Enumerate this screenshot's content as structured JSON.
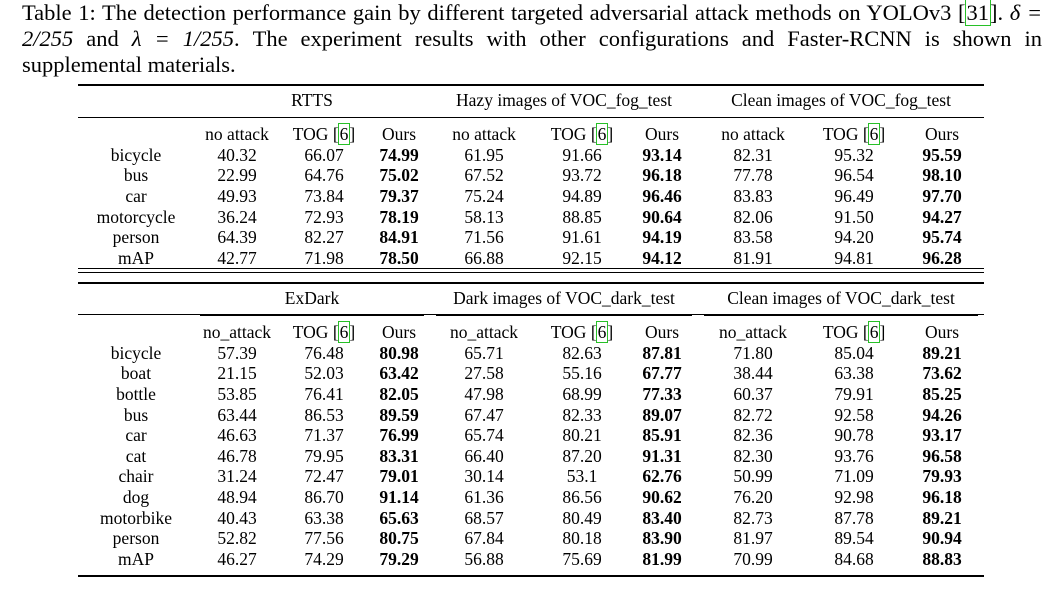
{
  "caption": {
    "prefix": "Table 1:  The detection performance gain by different targeted adversarial attack methods on YOLOv3 ",
    "cite": "31",
    "middle": ".  ",
    "delta": "δ = 2/255",
    "and": " and ",
    "lambda": "λ = 1/255",
    "suffix": ".  The experiment results with other configurations and Faster-RCNN is shown in supplemental materials."
  },
  "table1": {
    "groups": [
      "RTTS",
      "Hazy images of VOC_fog_test",
      "Clean images of VOC_fog_test"
    ],
    "columns": [
      "no attack",
      "TOG",
      "Ours",
      "no attack",
      "TOG",
      "Ours",
      "no attack",
      "TOG",
      "Ours"
    ],
    "tog_cite": "6",
    "rows": [
      {
        "label": "bicycle",
        "values": [
          "40.32",
          "66.07",
          "74.99",
          "61.95",
          "91.66",
          "93.14",
          "82.31",
          "95.32",
          "95.59"
        ]
      },
      {
        "label": "bus",
        "values": [
          "22.99",
          "64.76",
          "75.02",
          "67.52",
          "93.72",
          "96.18",
          "77.78",
          "96.54",
          "98.10"
        ]
      },
      {
        "label": "car",
        "values": [
          "49.93",
          "73.84",
          "79.37",
          "75.24",
          "94.89",
          "96.46",
          "83.83",
          "96.49",
          "97.70"
        ]
      },
      {
        "label": "motorcycle",
        "values": [
          "36.24",
          "72.93",
          "78.19",
          "58.13",
          "88.85",
          "90.64",
          "82.06",
          "91.50",
          "94.27"
        ]
      },
      {
        "label": "person",
        "values": [
          "64.39",
          "82.27",
          "84.91",
          "71.56",
          "91.61",
          "94.19",
          "83.58",
          "94.20",
          "95.74"
        ]
      },
      {
        "label": "mAP",
        "values": [
          "42.77",
          "71.98",
          "78.50",
          "66.88",
          "92.15",
          "94.12",
          "81.91",
          "94.81",
          "96.28"
        ]
      }
    ]
  },
  "table2": {
    "groups": [
      "ExDark",
      "Dark images of VOC_dark_test",
      "Clean images of VOC_dark_test"
    ],
    "columns": [
      "no_attack",
      "TOG",
      "Ours",
      "no_attack",
      "TOG",
      "Ours",
      "no_attack",
      "TOG",
      "Ours"
    ],
    "tog_cite": "6",
    "rows": [
      {
        "label": "bicycle",
        "values": [
          "57.39",
          "76.48",
          "80.98",
          "65.71",
          "82.63",
          "87.81",
          "71.80",
          "85.04",
          "89.21"
        ]
      },
      {
        "label": "boat",
        "values": [
          "21.15",
          "52.03",
          "63.42",
          "27.58",
          "55.16",
          "67.77",
          "38.44",
          "63.38",
          "73.62"
        ]
      },
      {
        "label": "bottle",
        "values": [
          "53.85",
          "76.41",
          "82.05",
          "47.98",
          "68.99",
          "77.33",
          "60.37",
          "79.91",
          "85.25"
        ]
      },
      {
        "label": "bus",
        "values": [
          "63.44",
          "86.53",
          "89.59",
          "67.47",
          "82.33",
          "89.07",
          "82.72",
          "92.58",
          "94.26"
        ]
      },
      {
        "label": "car",
        "values": [
          "46.63",
          "71.37",
          "76.99",
          "65.74",
          "80.21",
          "85.91",
          "82.36",
          "90.78",
          "93.17"
        ]
      },
      {
        "label": "cat",
        "values": [
          "46.78",
          "79.95",
          "83.31",
          "66.40",
          "87.20",
          "91.31",
          "82.30",
          "93.76",
          "96.58"
        ]
      },
      {
        "label": "chair",
        "values": [
          "31.24",
          "72.47",
          "79.01",
          "30.14",
          "53.1",
          "62.76",
          "50.99",
          "71.09",
          "79.93"
        ]
      },
      {
        "label": "dog",
        "values": [
          "48.94",
          "86.70",
          "91.14",
          "61.36",
          "86.56",
          "90.62",
          "76.20",
          "92.98",
          "96.18"
        ]
      },
      {
        "label": "motorbike",
        "values": [
          "40.43",
          "63.38",
          "65.63",
          "68.57",
          "80.49",
          "83.40",
          "82.73",
          "87.78",
          "89.21"
        ]
      },
      {
        "label": "person",
        "values": [
          "52.82",
          "77.56",
          "80.75",
          "67.84",
          "80.18",
          "83.90",
          "81.97",
          "89.54",
          "90.94"
        ]
      },
      {
        "label": "mAP",
        "values": [
          "46.27",
          "74.29",
          "79.29",
          "56.88",
          "75.69",
          "81.99",
          "70.99",
          "84.68",
          "88.83"
        ]
      }
    ]
  }
}
